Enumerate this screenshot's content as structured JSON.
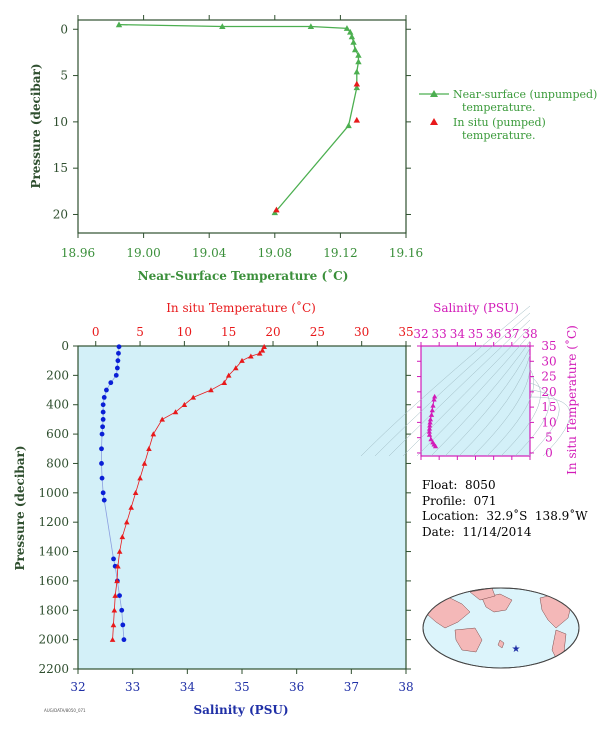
{
  "colors": {
    "green": "#4caf50",
    "red": "#e8191b",
    "blue": "#0a1fd6",
    "navy": "#1f2fa6",
    "magenta": "#d21bb8",
    "axis_text": "#2f4f2f",
    "panel_bg": "#d3f0f8"
  },
  "chart_data": [
    {
      "type": "line",
      "xlabel": "Near-Surface Temperature (˚C)",
      "ylabel": "Pressure (decibar)",
      "xlim": [
        18.96,
        19.16
      ],
      "ylim": [
        22,
        -1
      ],
      "x_ticks": [
        "18.96",
        "19.00",
        "19.04",
        "19.08",
        "19.12",
        "19.16"
      ],
      "y_ticks": [
        "0",
        "5",
        "10",
        "15",
        "20"
      ],
      "series": [
        {
          "name": "Near-surface (unpumped) temperature.",
          "color": "#4caf50",
          "marker": "triangle",
          "points": [
            [
              18.985,
              -0.5
            ],
            [
              19.048,
              -0.3
            ],
            [
              19.102,
              -0.3
            ],
            [
              19.124,
              -0.1
            ],
            [
              19.126,
              0.3
            ],
            [
              19.127,
              0.8
            ],
            [
              19.128,
              1.4
            ],
            [
              19.129,
              2.2
            ],
            [
              19.131,
              2.8
            ],
            [
              19.131,
              3.5
            ],
            [
              19.13,
              4.6
            ],
            [
              19.13,
              6.3
            ],
            [
              19.125,
              10.4
            ],
            [
              19.08,
              19.8
            ]
          ]
        },
        {
          "name": "In situ (pumped) temperature.",
          "color": "#e8191b",
          "marker": "triangle",
          "points": [
            [
              19.13,
              5.9
            ],
            [
              19.13,
              9.8
            ],
            [
              19.081,
              19.5
            ]
          ]
        }
      ]
    },
    {
      "type": "line",
      "xlabel": "Salinity (PSU)",
      "x2label": "In situ Temperature (˚C)",
      "ylabel": "Pressure (decibar)",
      "xlim": [
        32,
        38
      ],
      "x2lim": [
        -2,
        35
      ],
      "ylim": [
        2200,
        0
      ],
      "x_ticks": [
        "32",
        "33",
        "34",
        "35",
        "36",
        "37",
        "38"
      ],
      "x2_ticks": [
        "0",
        "5",
        "10",
        "15",
        "20",
        "25",
        "30",
        "35"
      ],
      "y_ticks": [
        "0",
        "200",
        "400",
        "600",
        "800",
        "1000",
        "1200",
        "1400",
        "1600",
        "1800",
        "2000",
        "2200"
      ],
      "series": [
        {
          "name": "Salinity",
          "color": "#0a1fd6",
          "marker": "circle",
          "points": [
            [
              32.75,
              5
            ],
            [
              32.74,
              50
            ],
            [
              32.73,
              100
            ],
            [
              32.72,
              150
            ],
            [
              32.7,
              200
            ],
            [
              32.6,
              250
            ],
            [
              32.52,
              300
            ],
            [
              32.48,
              350
            ],
            [
              32.46,
              400
            ],
            [
              32.46,
              450
            ],
            [
              32.46,
              500
            ],
            [
              32.45,
              550
            ],
            [
              32.44,
              600
            ],
            [
              32.43,
              700
            ],
            [
              32.43,
              800
            ],
            [
              32.44,
              900
            ],
            [
              32.46,
              1000
            ],
            [
              32.48,
              1050
            ],
            [
              32.65,
              1450
            ],
            [
              32.68,
              1500
            ],
            [
              32.72,
              1600
            ],
            [
              32.76,
              1700
            ],
            [
              32.8,
              1800
            ],
            [
              32.82,
              1900
            ],
            [
              32.84,
              2000
            ]
          ]
        },
        {
          "name": "In situ Temperature",
          "color": "#e8191b",
          "marker": "triangle",
          "points": [
            [
              19.0,
              5
            ],
            [
              18.8,
              30
            ],
            [
              18.5,
              50
            ],
            [
              17.5,
              70
            ],
            [
              16.5,
              100
            ],
            [
              15.8,
              150
            ],
            [
              15.0,
              200
            ],
            [
              14.5,
              250
            ],
            [
              13.0,
              300
            ],
            [
              11.0,
              350
            ],
            [
              10.0,
              400
            ],
            [
              9.0,
              450
            ],
            [
              7.5,
              500
            ],
            [
              6.5,
              600
            ],
            [
              6.0,
              700
            ],
            [
              5.5,
              800
            ],
            [
              5.0,
              900
            ],
            [
              4.5,
              1000
            ],
            [
              4.0,
              1100
            ],
            [
              3.5,
              1200
            ],
            [
              3.0,
              1300
            ],
            [
              2.7,
              1400
            ],
            [
              2.5,
              1500
            ],
            [
              2.4,
              1600
            ],
            [
              2.2,
              1700
            ],
            [
              2.1,
              1800
            ],
            [
              2.0,
              1900
            ],
            [
              1.9,
              2000
            ]
          ]
        }
      ]
    },
    {
      "type": "scatter",
      "xlabel": "Salinity (PSU)",
      "ylabel": "In situ Temperature (˚C)",
      "xlim": [
        32,
        38
      ],
      "ylim": [
        -1,
        35
      ],
      "x_ticks": [
        "32",
        "33",
        "34",
        "35",
        "36",
        "37",
        "38"
      ],
      "y_ticks": [
        "0",
        "5",
        "10",
        "15",
        "20",
        "25",
        "30",
        "35"
      ],
      "series": [
        {
          "name": "T-S",
          "color": "#d21bb8",
          "points": [
            [
              32.75,
              18.5
            ],
            [
              32.72,
              17.5
            ],
            [
              32.66,
              15.5
            ],
            [
              32.62,
              14.0
            ],
            [
              32.58,
              12.5
            ],
            [
              32.52,
              11.0
            ],
            [
              32.5,
              10.0
            ],
            [
              32.48,
              9.0
            ],
            [
              32.47,
              8.0
            ],
            [
              32.46,
              7.0
            ],
            [
              32.47,
              6.0
            ],
            [
              32.55,
              4.5
            ],
            [
              32.65,
              3.5
            ],
            [
              32.72,
              2.8
            ],
            [
              32.8,
              2.2
            ]
          ]
        }
      ]
    }
  ],
  "legend": {
    "near_surface": "Near-surface (unpumped)",
    "near_surface_2": "temperature.",
    "in_situ": "In situ (pumped)",
    "in_situ_2": "temperature."
  },
  "float_info": {
    "float": "Float:  8050",
    "profile": "Profile:  071",
    "location": "Location:  32.9˚S  138.9˚W",
    "date": "Date:  11/14/2014"
  },
  "footer_code": "AUG/DATA/8050_071"
}
